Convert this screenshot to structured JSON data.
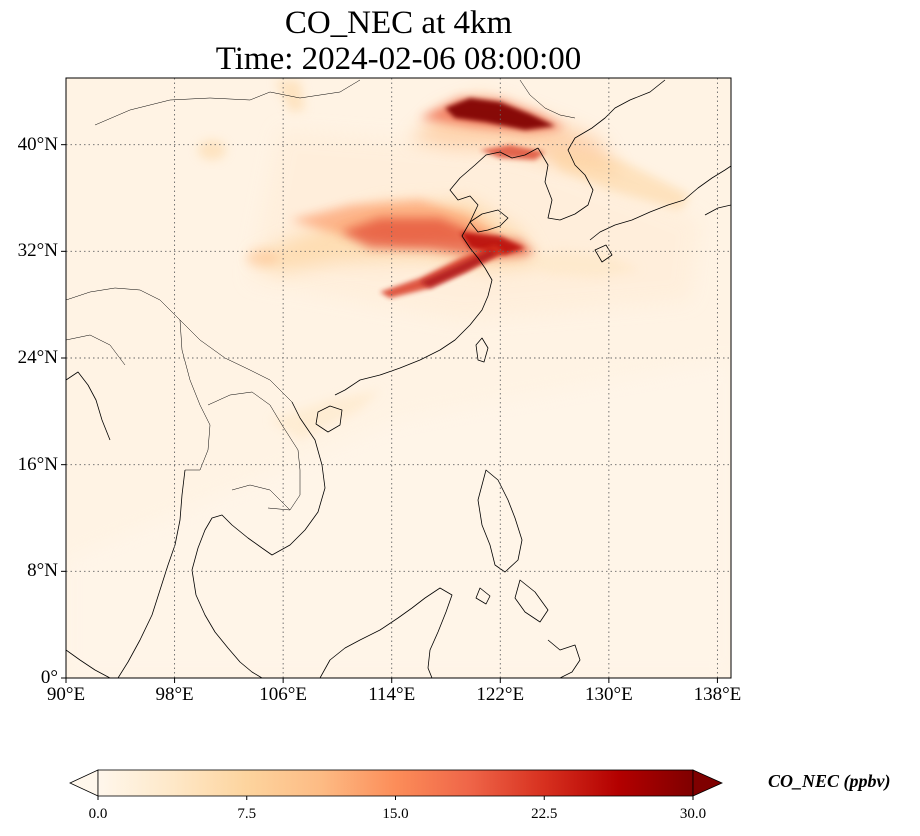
{
  "title": {
    "line1": "CO_NEC at 4km",
    "line2": "Time: 2024-02-06 08:00:00"
  },
  "map": {
    "lon_range": [
      90,
      139
    ],
    "lat_range": [
      0,
      45
    ],
    "lon_ticks": [
      {
        "value": 90,
        "label": "90°E"
      },
      {
        "value": 98,
        "label": "98°E"
      },
      {
        "value": 106,
        "label": "106°E"
      },
      {
        "value": 114,
        "label": "114°E"
      },
      {
        "value": 122,
        "label": "122°E"
      },
      {
        "value": 130,
        "label": "130°E"
      },
      {
        "value": 138,
        "label": "138°E"
      }
    ],
    "lat_ticks": [
      {
        "value": 0,
        "label": "0°"
      },
      {
        "value": 8,
        "label": "8°N"
      },
      {
        "value": 16,
        "label": "16°N"
      },
      {
        "value": 24,
        "label": "24°N"
      },
      {
        "value": 32,
        "label": "32°N"
      },
      {
        "value": 40,
        "label": "40°N"
      }
    ],
    "gridlines": true,
    "colormap": [
      "#fff7ec",
      "#fee8c8",
      "#fdd49e",
      "#fdbb84",
      "#fc8d59",
      "#ef6548",
      "#d7301f",
      "#b30000",
      "#7f0000"
    ]
  },
  "colorbar": {
    "label": "CO_NEC (ppbv)",
    "range": [
      0,
      30
    ],
    "extend": "both",
    "ticks": [
      {
        "value": 0,
        "label": "0.0"
      },
      {
        "value": 7.5,
        "label": "7.5"
      },
      {
        "value": 15,
        "label": "15.0"
      },
      {
        "value": 22.5,
        "label": "22.5"
      },
      {
        "value": 30,
        "label": "30.0"
      }
    ]
  }
}
